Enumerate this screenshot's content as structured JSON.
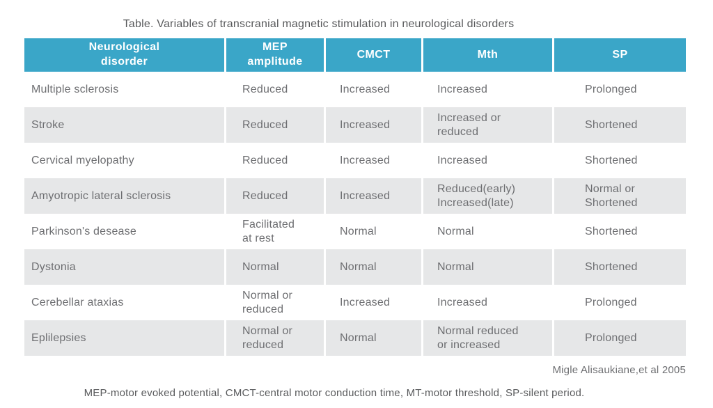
{
  "title": "Table. Variables of transcranial magnetic stimulation in neurological disorders",
  "citation": "Migle Alisaukiane,et al 2005",
  "footnote": "MEP-motor evoked potential, CMCT-central motor conduction time, MT-motor threshold, SP-silent period.",
  "colors": {
    "header_bg": "#3aa6c8",
    "header_text": "#ffffff",
    "row_alt_bg": "#e6e7e8",
    "cell_text": "#6d6e71",
    "caption_text": "#58595b",
    "background": "#ffffff"
  },
  "chart_data": {
    "type": "table",
    "title": "Table. Variables of transcranial magnetic stimulation in neurological disorders",
    "columns": [
      "Neurological\ndisorder",
      "MEP\namplitude",
      "CMCT",
      "Mth",
      "SP"
    ],
    "rows": [
      [
        "Multiple sclerosis",
        "Reduced",
        "Increased",
        "Increased",
        "Prolonged"
      ],
      [
        "Stroke",
        "Reduced",
        "Increased",
        "Increased or\nreduced",
        "Shortened"
      ],
      [
        "Cervical myelopathy",
        "Reduced",
        "Increased",
        "Increased",
        "Shortened"
      ],
      [
        "Amyotropic lateral sclerosis",
        "Reduced",
        "Increased",
        "Reduced(early)\nIncreased(late)",
        "Normal or\nShortened"
      ],
      [
        "Parkinson's desease",
        "Facilitated\nat rest",
        "Normal",
        "Normal",
        "Shortened"
      ],
      [
        "Dystonia",
        "Normal",
        "Normal",
        "Normal",
        "Shortened"
      ],
      [
        "Cerebellar ataxias",
        "Normal or\nreduced",
        "Increased",
        "Increased",
        "Prolonged"
      ],
      [
        "Eplilepsies",
        "Normal or\nreduced",
        "Normal",
        "Normal reduced\nor increased",
        "Prolonged"
      ]
    ],
    "source": "Migle Alisaukiane,et al 2005",
    "footnote": "MEP-motor evoked potential, CMCT-central motor conduction time, MT-motor threshold, SP-silent period.",
    "layout": {
      "legend": false,
      "grid": false,
      "alternating_row_shading": true
    }
  }
}
